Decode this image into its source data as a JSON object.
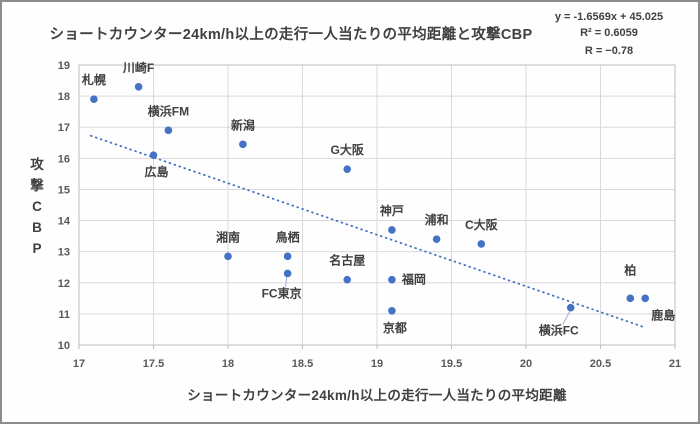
{
  "header": {
    "title": "ショートカウンター24km/h以上の走行一人当たりの平均距離と攻撃CBP"
  },
  "regression": {
    "equation": "y = -1.6569x + 45.025",
    "r_squared": "R² = 0.6059",
    "r": "R = −0.78"
  },
  "chart_data": {
    "type": "scatter",
    "title": "ショートカウンター24km/h以上の走行一人当たりの平均距離と攻撃CBP",
    "xlabel": "ショートカウンター24km/h以上の走行一人当たりの平均距離",
    "ylabel": "攻撃CBP",
    "xlim": [
      17,
      21
    ],
    "ylim": [
      10,
      19
    ],
    "x_ticks": [
      "17",
      "17.5",
      "18",
      "18.5",
      "19",
      "19.5",
      "20",
      "20.5",
      "21"
    ],
    "y_ticks": [
      "10",
      "11",
      "12",
      "13",
      "14",
      "15",
      "16",
      "17",
      "18",
      "19"
    ],
    "grid": true,
    "legend": "none",
    "point_color": "#4472C4",
    "label_color": "#404040",
    "gridline_color": "#D9D9D9",
    "axis_color": "#BFBFBF",
    "points": [
      {
        "label": "札幌",
        "x": 17.1,
        "y": 17.9,
        "label_pos": "above"
      },
      {
        "label": "川崎F",
        "x": 17.4,
        "y": 18.3,
        "label_pos": "above"
      },
      {
        "label": "横浜FM",
        "x": 17.6,
        "y": 16.9,
        "label_pos": "above"
      },
      {
        "label": "広島",
        "x": 17.5,
        "y": 16.1,
        "label_pos": "below"
      },
      {
        "label": "新潟",
        "x": 18.1,
        "y": 16.45,
        "label_pos": "above"
      },
      {
        "label": "G大阪",
        "x": 18.8,
        "y": 15.65,
        "label_pos": "above"
      },
      {
        "label": "湘南",
        "x": 18.0,
        "y": 12.85,
        "label_pos": "above"
      },
      {
        "label": "鳥栖",
        "x": 18.4,
        "y": 12.85,
        "label_pos": "above"
      },
      {
        "label": "FC東京",
        "x": 18.4,
        "y": 12.3,
        "label_pos": "below-leader"
      },
      {
        "label": "名古屋",
        "x": 18.8,
        "y": 12.1,
        "label_pos": "above"
      },
      {
        "label": "神戸",
        "x": 19.1,
        "y": 13.7,
        "label_pos": "above"
      },
      {
        "label": "浦和",
        "x": 19.4,
        "y": 13.4,
        "label_pos": "above"
      },
      {
        "label": "C大阪",
        "x": 19.7,
        "y": 13.25,
        "label_pos": "above"
      },
      {
        "label": "福岡",
        "x": 19.1,
        "y": 12.1,
        "label_pos": "right"
      },
      {
        "label": "京都",
        "x": 19.1,
        "y": 11.1,
        "label_pos": "below"
      },
      {
        "label": "横浜FC",
        "x": 20.3,
        "y": 11.2,
        "label_pos": "below-left-leader"
      },
      {
        "label": "柏",
        "x": 20.7,
        "y": 11.5,
        "label_pos": "above-far"
      },
      {
        "label": "鹿島",
        "x": 20.8,
        "y": 11.5,
        "label_pos": "below-right"
      }
    ],
    "trendline": {
      "type": "linear",
      "slope": -1.6569,
      "intercept": 45.025,
      "x_start": 17.08,
      "x_end": 20.78,
      "style": "dotted",
      "color": "#4472C4",
      "equation": "y = -1.6569x + 45.025",
      "r_squared": 0.6059,
      "r": -0.78
    }
  }
}
